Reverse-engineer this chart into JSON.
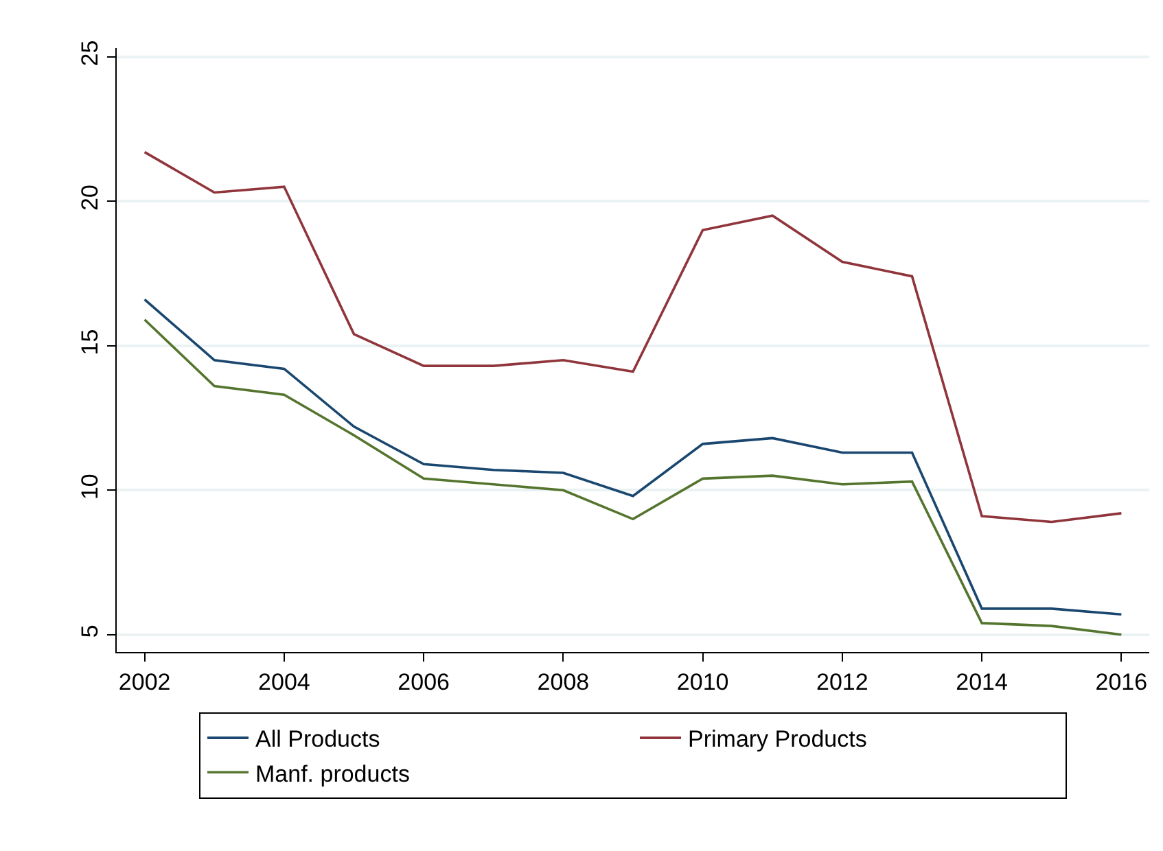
{
  "chart_data": {
    "type": "line",
    "x": [
      2002,
      2003,
      2004,
      2005,
      2006,
      2007,
      2008,
      2009,
      2010,
      2011,
      2012,
      2013,
      2014,
      2015,
      2016
    ],
    "series": [
      {
        "name": "All Products",
        "color": "#1a476f",
        "values": [
          16.6,
          14.5,
          14.2,
          12.2,
          10.9,
          10.7,
          10.6,
          9.8,
          11.6,
          11.8,
          11.3,
          11.3,
          5.9,
          5.9,
          5.7
        ]
      },
      {
        "name": "Primary Products",
        "color": "#90353b",
        "values": [
          21.7,
          20.3,
          20.5,
          15.4,
          14.3,
          14.3,
          14.5,
          14.1,
          19.0,
          19.5,
          17.9,
          17.4,
          9.1,
          8.9,
          9.2
        ]
      },
      {
        "name": "Manf. products",
        "color": "#55752f",
        "values": [
          15.9,
          13.6,
          13.3,
          11.9,
          10.4,
          10.2,
          10.0,
          9.0,
          10.4,
          10.5,
          10.2,
          10.3,
          5.4,
          5.3,
          5.0
        ]
      }
    ],
    "xlim": [
      2001.6,
      2016.4
    ],
    "xticks": [
      2002,
      2004,
      2006,
      2008,
      2010,
      2012,
      2014,
      2016
    ],
    "ylim": [
      4.4,
      25.3
    ],
    "yticks": [
      5,
      10,
      15,
      20,
      25
    ],
    "grid": "y",
    "legend": "bottom",
    "marker": "none",
    "line_style": "solid"
  }
}
